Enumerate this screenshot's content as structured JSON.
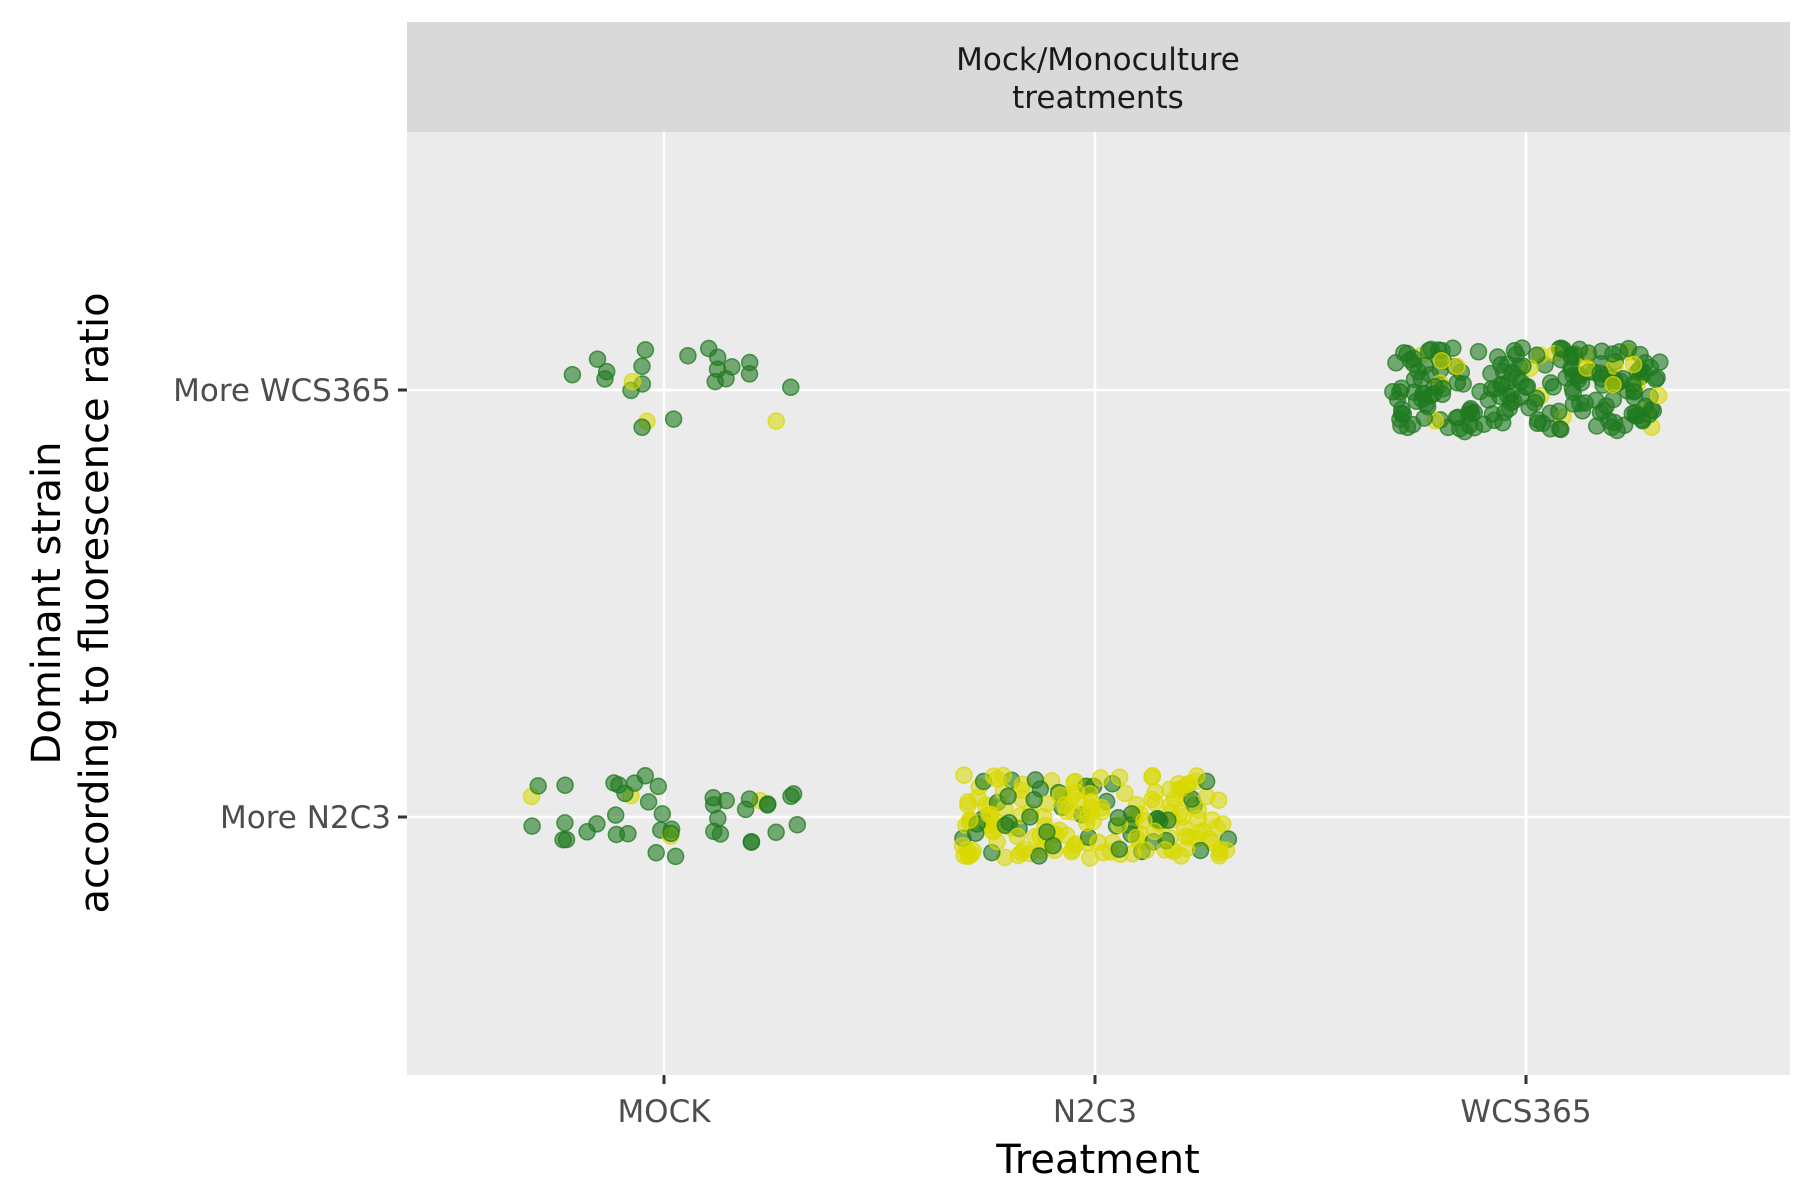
{
  "chart_data": {
    "type": "scatter",
    "jitter": true,
    "facet_label": "Mock/Monoculture\ntreatments",
    "xlabel": "Treatment",
    "ylabel": "Dominant strain\naccording to fluorescence ratio",
    "x_categories": [
      "MOCK",
      "N2C3",
      "WCS365"
    ],
    "y_categories": [
      "More N2C3",
      "More WCS365"
    ],
    "grid": true,
    "legend": "none",
    "colors": {
      "WCS365-like": "#1f7a1f",
      "N2C3-like": "#d8d800",
      "panel": "#ebebeb",
      "strip": "#d9d9d9",
      "grid": "#ffffff"
    },
    "groups": [
      {
        "x": "MOCK",
        "y": "More WCS365",
        "green": 20,
        "yellow": 3
      },
      {
        "x": "MOCK",
        "y": "More N2C3",
        "green": 40,
        "yellow": 4
      },
      {
        "x": "N2C3",
        "y": "More N2C3",
        "green": 45,
        "yellow": 150
      },
      {
        "x": "WCS365",
        "y": "More WCS365",
        "green": 190,
        "yellow": 20
      }
    ]
  }
}
